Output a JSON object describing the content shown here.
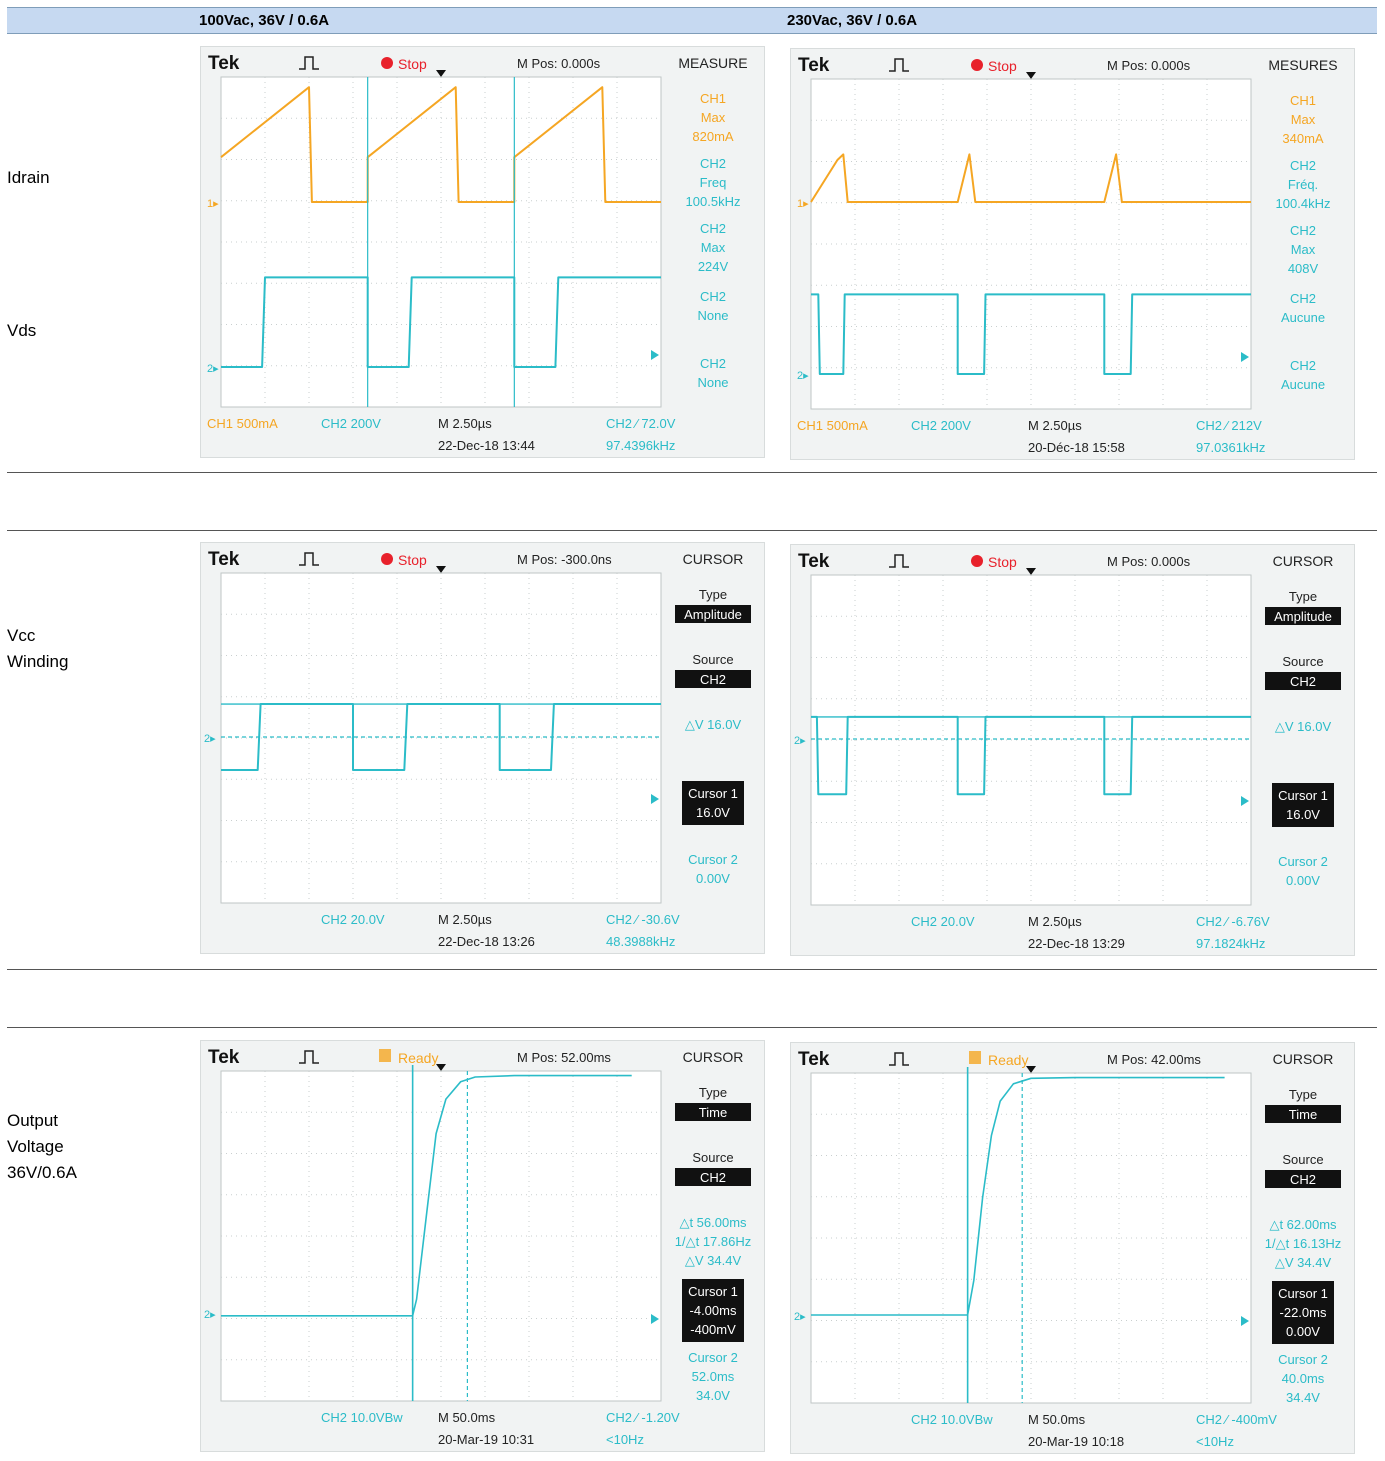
{
  "header": {
    "col1": "100Vac, 36V / 0.6A",
    "col2": "230Vac, 36V / 0.6A"
  },
  "row_labels": [
    {
      "lines": [
        "Idrain"
      ]
    },
    {
      "lines": [
        "Vds"
      ]
    },
    {
      "lines": [
        "Vcc",
        "Winding"
      ]
    },
    {
      "lines": [
        "Output",
        "Voltage",
        "36V/0.6A"
      ]
    }
  ],
  "colors": {
    "ch1": "#f5a623",
    "ch2": "#2bbcc8",
    "panel": "#f1f3f3",
    "grid_bg": "#ffffff"
  },
  "scopes": [
    {
      "brand": "Tek",
      "trig_icon": "pulse-icon",
      "status": "Stop",
      "status_icon": "stop-dot-icon",
      "mpos": "M Pos: 0.000s",
      "menu": "MEASURE",
      "side": [
        {
          "lines": [
            "CH1",
            "Max",
            "820mA"
          ],
          "color": "#f5a623"
        },
        {
          "lines": [
            "CH2",
            "Freq",
            "100.5kHz"
          ],
          "color": "#2bbcc8"
        },
        {
          "lines": [
            "CH2",
            "Max",
            "224V"
          ],
          "color": "#2bbcc8"
        },
        {
          "lines": [
            "CH2",
            "None"
          ],
          "color": "#2bbcc8"
        },
        {
          "lines": [
            "CH2",
            "None"
          ],
          "color": "#2bbcc8"
        }
      ],
      "bottom": {
        "ch1": "CH1  500mA",
        "ch2": "CH2  200V",
        "time": "M 2.50µs",
        "date": "22-Dec-18 13:44",
        "trig": "CH2 ∕ 72.0V",
        "freq": "97.4396kHz"
      },
      "markers": [
        "1▸",
        "2▸"
      ]
    },
    {
      "brand": "Tek",
      "trig_icon": "pulse-icon",
      "status": "Stop",
      "status_icon": "stop-dot-icon",
      "mpos": "M Pos: 0.000s",
      "menu": "MESURES",
      "side": [
        {
          "lines": [
            "CH1",
            "Max",
            "340mA"
          ],
          "color": "#f5a623"
        },
        {
          "lines": [
            "CH2",
            "Fréq.",
            "100.4kHz"
          ],
          "color": "#2bbcc8"
        },
        {
          "lines": [
            "CH2",
            "Max",
            "408V"
          ],
          "color": "#2bbcc8"
        },
        {
          "lines": [
            "CH2",
            "Aucune"
          ],
          "color": "#2bbcc8"
        },
        {
          "lines": [
            "CH2",
            "Aucune"
          ],
          "color": "#2bbcc8"
        }
      ],
      "bottom": {
        "ch1": "CH1  500mA",
        "ch2": "CH2  200V",
        "time": "M 2.50µs",
        "date": "20-Déc-18 15:58",
        "trig": "CH2 ∕ 212V",
        "freq": "97.0361kHz"
      },
      "markers": [
        "1▸",
        "2▸"
      ]
    },
    {
      "brand": "Tek",
      "trig_icon": "pulse-icon",
      "status": "Stop",
      "status_icon": "stop-dot-icon",
      "mpos": "M Pos: -300.0ns",
      "menu": "CURSOR",
      "side": [
        {
          "lines": [
            "Type"
          ],
          "box": "Amplitude",
          "color": "#000000"
        },
        {
          "lines": [
            "Source"
          ],
          "box": "CH2",
          "color": "#000000"
        },
        {
          "lines": [
            "△V 16.0V"
          ],
          "color": "#2bbcc8"
        },
        {
          "lines": [],
          "boxlines": [
            "Cursor 1",
            "16.0V"
          ],
          "color": "#000000"
        },
        {
          "lines": [
            "Cursor 2",
            "0.00V"
          ],
          "color": "#2bbcc8"
        }
      ],
      "bottom": {
        "ch1": "",
        "ch2": "CH2  20.0V",
        "time": "M 2.50µs",
        "date": "22-Dec-18 13:26",
        "trig": "CH2 ∕ -30.6V",
        "freq": "48.3988kHz"
      },
      "markers": [
        "2▸"
      ]
    },
    {
      "brand": "Tek",
      "trig_icon": "pulse-icon",
      "status": "Stop",
      "status_icon": "stop-dot-icon",
      "mpos": "M Pos: 0.000s",
      "menu": "CURSOR",
      "side": [
        {
          "lines": [
            "Type"
          ],
          "box": "Amplitude",
          "color": "#000000"
        },
        {
          "lines": [
            "Source"
          ],
          "box": "CH2",
          "color": "#000000"
        },
        {
          "lines": [
            "△V 16.0V"
          ],
          "color": "#2bbcc8"
        },
        {
          "lines": [],
          "boxlines": [
            "Cursor 1",
            "16.0V"
          ],
          "color": "#000000"
        },
        {
          "lines": [
            "Cursor 2",
            "0.00V"
          ],
          "color": "#2bbcc8"
        }
      ],
      "bottom": {
        "ch1": "",
        "ch2": "CH2  20.0V",
        "time": "M 2.50µs",
        "date": "22-Dec-18 13:29",
        "trig": "CH2 ∕ -6.76V",
        "freq": "97.1824kHz"
      },
      "markers": [
        "2▸"
      ]
    },
    {
      "brand": "Tek",
      "trig_icon": "pulse-icon",
      "status": "Ready",
      "status_icon": "ready-box-icon",
      "mpos": "M Pos: 52.00ms",
      "menu": "CURSOR",
      "side": [
        {
          "lines": [
            "Type"
          ],
          "box": "Time",
          "color": "#000000"
        },
        {
          "lines": [
            "Source"
          ],
          "box": "CH2",
          "color": "#000000"
        },
        {
          "lines": [
            "△t 56.00ms",
            "1/△t 17.86Hz",
            "△V 34.4V"
          ],
          "color": "#2bbcc8"
        },
        {
          "lines": [],
          "boxlines": [
            "Cursor 1",
            "-4.00ms",
            "-400mV"
          ],
          "color": "#000000"
        },
        {
          "lines": [
            "Cursor 2",
            "52.0ms",
            "34.0V"
          ],
          "color": "#2bbcc8"
        }
      ],
      "bottom": {
        "ch1": "",
        "ch2": "CH2  10.0VBw",
        "time": "M 50.0ms",
        "date": "20-Mar-19 10:31",
        "trig": "CH2 ∕ -1.20V",
        "freq": "<10Hz"
      },
      "markers": [
        "2▸"
      ]
    },
    {
      "brand": "Tek",
      "trig_icon": "pulse-icon",
      "status": "Ready",
      "status_icon": "ready-box-icon",
      "mpos": "M Pos: 42.00ms",
      "menu": "CURSOR",
      "side": [
        {
          "lines": [
            "Type"
          ],
          "box": "Time",
          "color": "#000000"
        },
        {
          "lines": [
            "Source"
          ],
          "box": "CH2",
          "color": "#000000"
        },
        {
          "lines": [
            "△t 62.00ms",
            "1/△t 16.13Hz",
            "△V 34.4V"
          ],
          "color": "#2bbcc8"
        },
        {
          "lines": [],
          "boxlines": [
            "Cursor 1",
            "-22.0ms",
            "0.00V"
          ],
          "color": "#000000"
        },
        {
          "lines": [
            "Cursor 2",
            "40.0ms",
            "34.4V"
          ],
          "color": "#2bbcc8"
        }
      ],
      "bottom": {
        "ch1": "",
        "ch2": "CH2  10.0VBw",
        "time": "M 50.0ms",
        "date": "20-Mar-19 10:18",
        "trig": "CH2 ∕ -400mV",
        "freq": "<10Hz"
      },
      "markers": [
        "2▸"
      ]
    }
  ],
  "chart_data": [
    {
      "type": "line",
      "series": [
        {
          "values": [
            [
              0,
              0.32
            ],
            [
              0.6,
              0.82
            ],
            [
              0.62,
              0.0
            ],
            [
              1.0,
              0.0
            ],
            [
              1.0,
              0.32
            ],
            [
              1.6,
              0.82
            ],
            [
              1.62,
              0.0
            ],
            [
              2.0,
              0.0
            ],
            [
              2.0,
              0.32
            ],
            [
              2.6,
              0.82
            ],
            [
              2.62,
              0.0
            ],
            [
              3.0,
              0.0
            ]
          ]
        },
        {
          "values": [
            [
              0,
              0
            ],
            [
              0.28,
              0
            ],
            [
              0.3,
              224
            ],
            [
              1.0,
              224
            ],
            [
              1.0,
              0
            ],
            [
              1.28,
              0
            ],
            [
              1.3,
              224
            ],
            [
              2.0,
              224
            ],
            [
              2.0,
              0
            ],
            [
              2.28,
              0
            ],
            [
              2.3,
              224
            ],
            [
              3.0,
              224
            ]
          ]
        }
      ]
    },
    {
      "type": "line",
      "series": [
        {
          "values": [
            [
              0,
              0.0
            ],
            [
              0.18,
              0.3
            ],
            [
              0.22,
              0.34
            ],
            [
              0.25,
              0.0
            ],
            [
              1.0,
              0.0
            ],
            [
              1.08,
              0.34
            ],
            [
              1.12,
              0.0
            ],
            [
              2.0,
              0.0
            ],
            [
              2.08,
              0.34
            ],
            [
              2.12,
              0.0
            ],
            [
              3.0,
              0.0
            ]
          ]
        },
        {
          "values": [
            [
              0,
              408
            ],
            [
              0.05,
              408
            ],
            [
              0.06,
              0
            ],
            [
              0.22,
              0
            ],
            [
              0.23,
              408
            ],
            [
              1.0,
              408
            ],
            [
              1.0,
              0
            ],
            [
              1.18,
              0
            ],
            [
              1.19,
              408
            ],
            [
              2.0,
              408
            ],
            [
              2.0,
              0
            ],
            [
              2.18,
              0
            ],
            [
              2.19,
              408
            ],
            [
              3.0,
              408
            ]
          ]
        }
      ]
    },
    {
      "type": "line",
      "series": [
        {
          "values": [
            [
              0,
              -16
            ],
            [
              0.25,
              -16
            ],
            [
              0.27,
              16
            ],
            [
              0.9,
              16
            ],
            [
              0.9,
              -16
            ],
            [
              1.25,
              -16
            ],
            [
              1.27,
              16
            ],
            [
              1.9,
              16
            ],
            [
              1.9,
              -16
            ],
            [
              2.25,
              -16
            ],
            [
              2.27,
              16
            ],
            [
              3.0,
              16
            ]
          ]
        }
      ]
    },
    {
      "type": "line",
      "series": [
        {
          "values": [
            [
              0,
              16
            ],
            [
              0.04,
              16
            ],
            [
              0.05,
              -40
            ],
            [
              0.24,
              -40
            ],
            [
              0.25,
              16
            ],
            [
              1.0,
              16
            ],
            [
              1.0,
              -40
            ],
            [
              1.18,
              -40
            ],
            [
              1.19,
              16
            ],
            [
              2.0,
              16
            ],
            [
              2.0,
              -40
            ],
            [
              2.18,
              -40
            ],
            [
              2.19,
              16
            ],
            [
              3.0,
              16
            ]
          ]
        }
      ]
    },
    {
      "type": "line",
      "x_unit": "ms",
      "y_unit": "V",
      "series": [
        {
          "values": [
            [
              -200,
              -0.4
            ],
            [
              -4,
              -0.4
            ],
            [
              0,
              2
            ],
            [
              10,
              14
            ],
            [
              20,
              26
            ],
            [
              30,
              31
            ],
            [
              45,
              33.5
            ],
            [
              60,
              34.2
            ],
            [
              100,
              34.4
            ],
            [
              220,
              34.4
            ]
          ]
        }
      ]
    },
    {
      "type": "line",
      "x_unit": "ms",
      "y_unit": "V",
      "series": [
        {
          "values": [
            [
              -200,
              0.0
            ],
            [
              -22,
              0.0
            ],
            [
              -15,
              5
            ],
            [
              -5,
              17
            ],
            [
              5,
              26
            ],
            [
              15,
              31
            ],
            [
              30,
              33.5
            ],
            [
              50,
              34.3
            ],
            [
              100,
              34.4
            ],
            [
              270,
              34.4
            ]
          ]
        }
      ]
    }
  ]
}
